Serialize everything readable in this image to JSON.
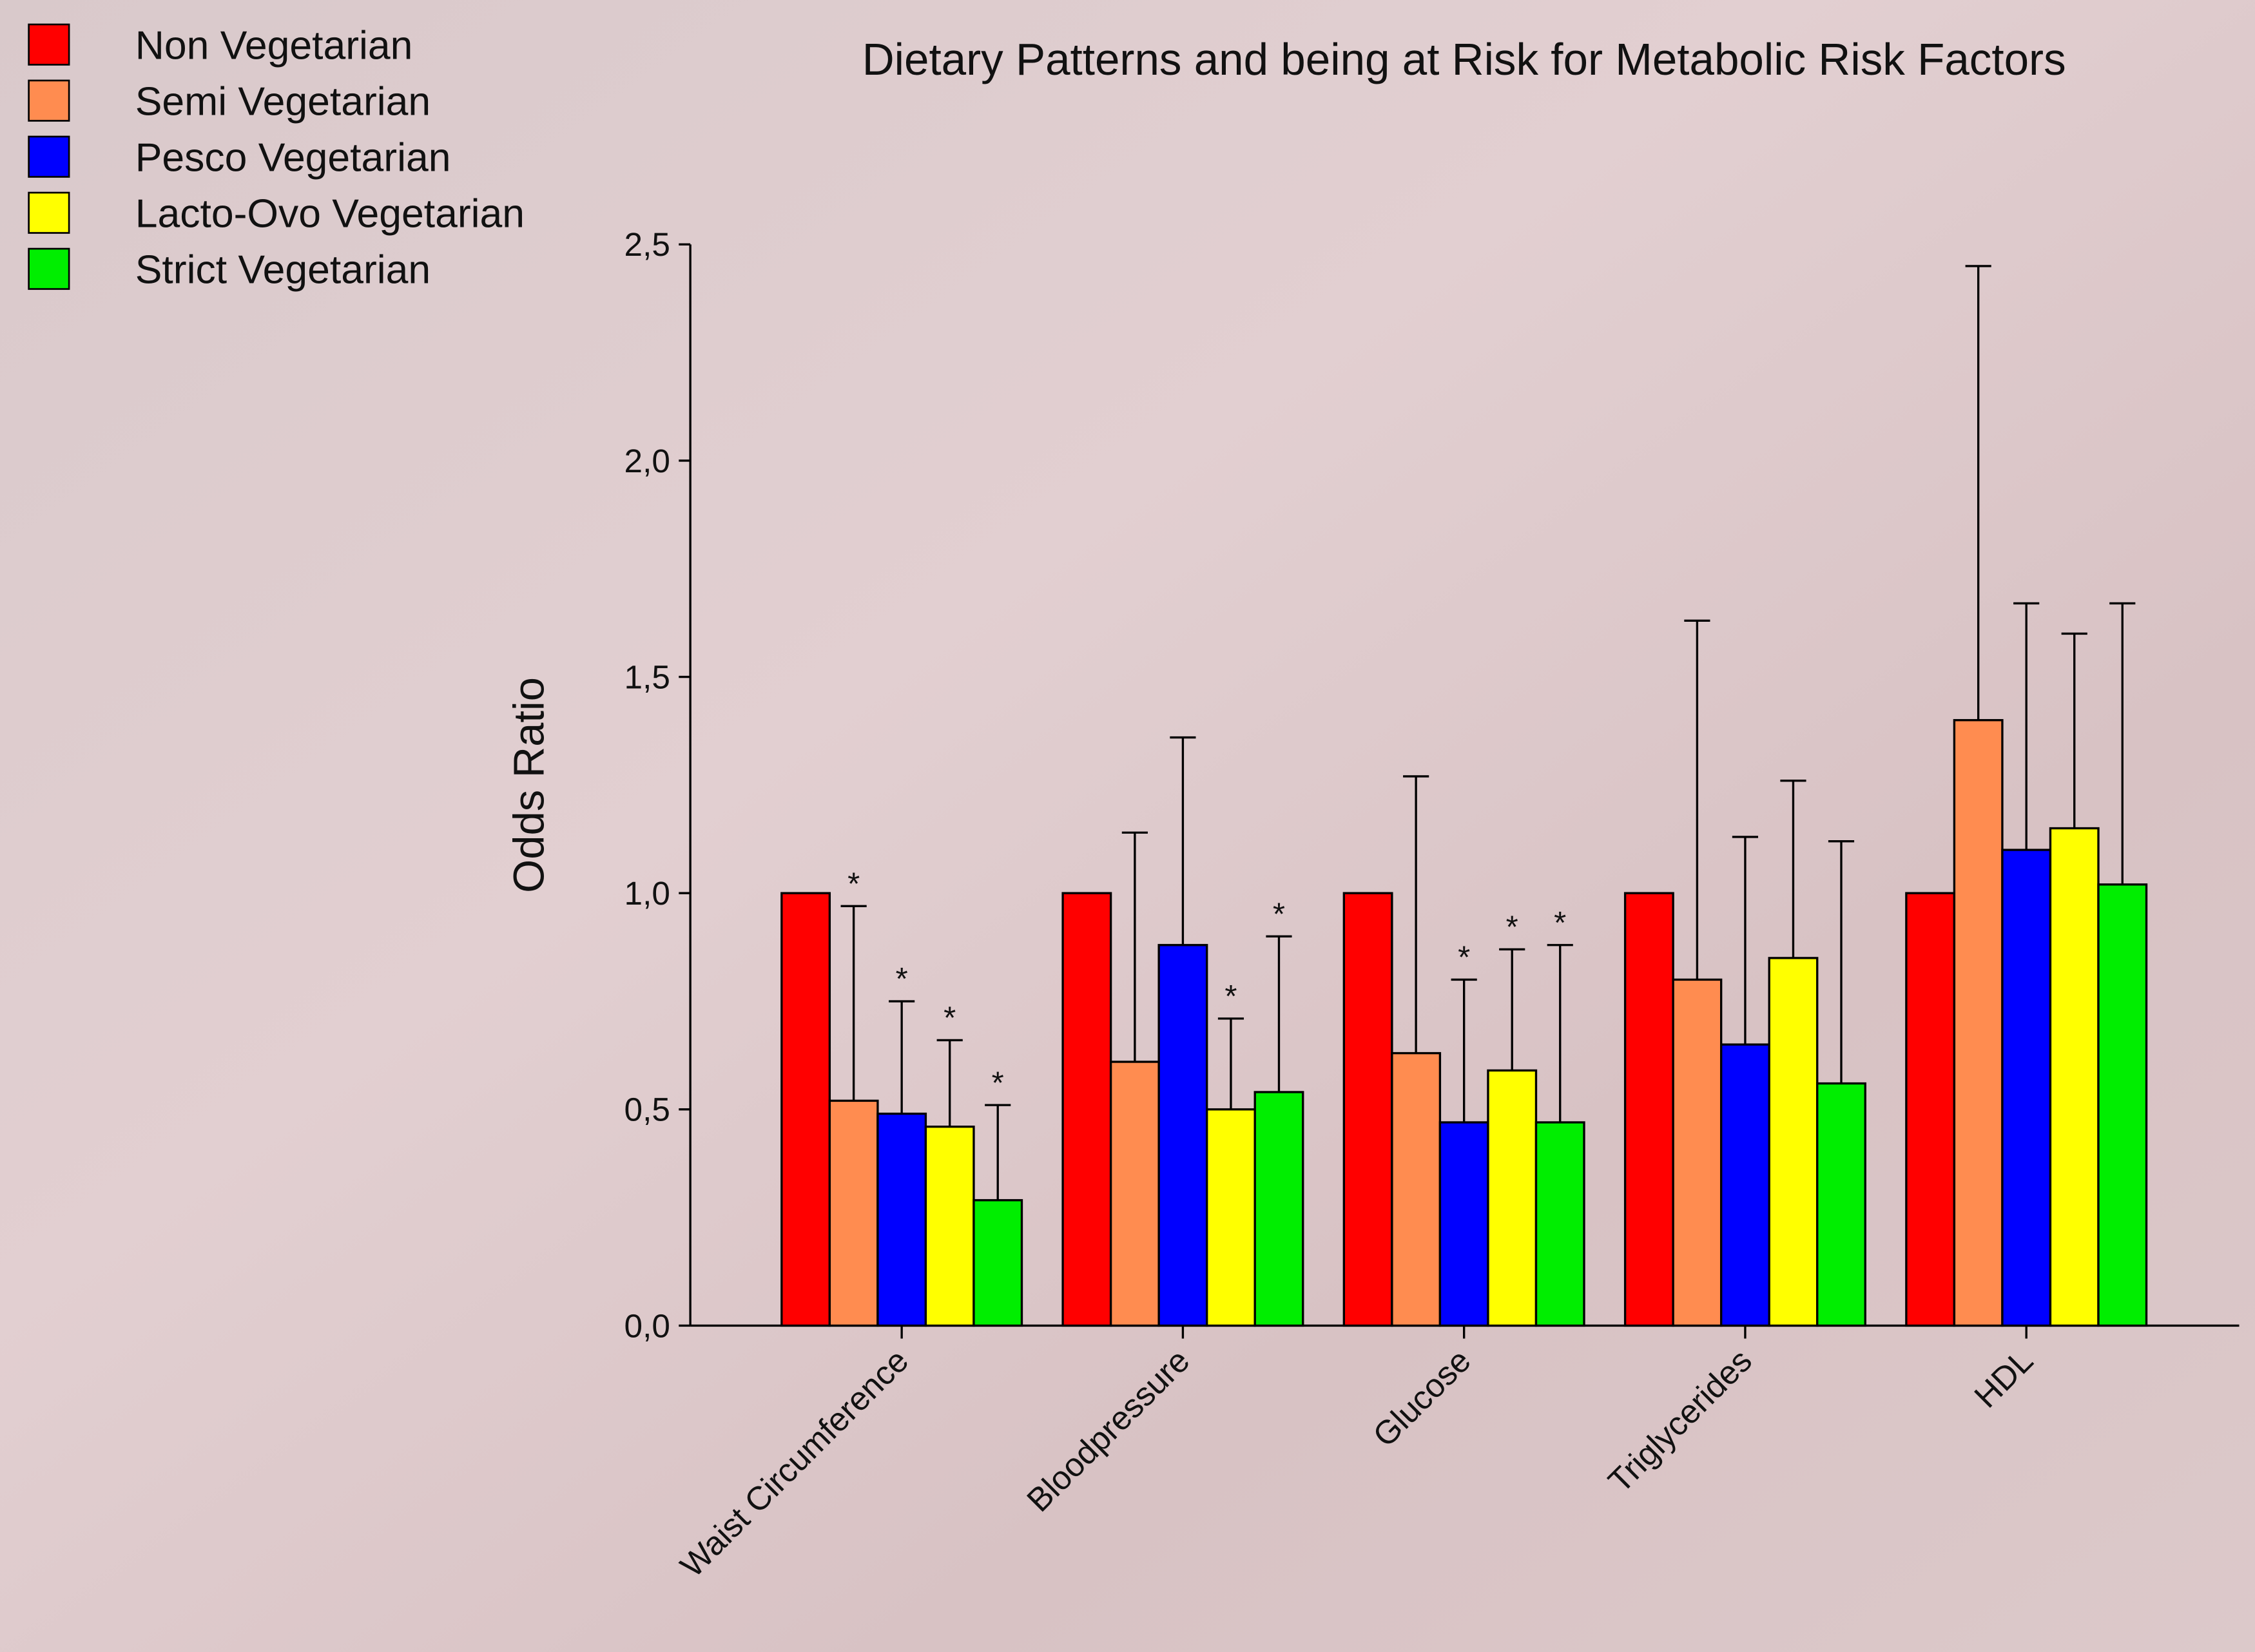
{
  "chart_data": {
    "type": "bar",
    "title": "Dietary Patterns and being at Risk for Metabolic Risk Factors",
    "y_label": "Odds Ratio",
    "categories": [
      "Waist Circumference",
      "Bloodpressure",
      "Glucose",
      "Triglycerides",
      "HDL"
    ],
    "series": [
      {
        "name": "Non Vegetarian",
        "color": "#ff0000",
        "values": [
          1.0,
          1.0,
          1.0,
          1.0,
          1.0
        ],
        "upper": [
          null,
          null,
          null,
          null,
          null
        ],
        "annotations": [
          null,
          null,
          null,
          null,
          null
        ]
      },
      {
        "name": "Semi Vegetarian",
        "color": "#ff8c50",
        "values": [
          0.52,
          0.61,
          0.63,
          0.8,
          1.4
        ],
        "upper": [
          0.97,
          1.14,
          1.27,
          1.63,
          2.45
        ],
        "annotations": [
          "*",
          null,
          null,
          null,
          null
        ]
      },
      {
        "name": "Pesco Vegetarian",
        "color": "#0000ff",
        "values": [
          0.49,
          0.88,
          0.47,
          0.65,
          1.1
        ],
        "upper": [
          0.75,
          1.36,
          0.8,
          1.13,
          1.67
        ],
        "annotations": [
          "*",
          null,
          "*",
          null,
          null
        ]
      },
      {
        "name": "Lacto-Ovo Vegetarian",
        "color": "#ffff00",
        "values": [
          0.46,
          0.5,
          0.59,
          0.85,
          1.15
        ],
        "upper": [
          0.66,
          0.71,
          0.87,
          1.26,
          1.6
        ],
        "annotations": [
          "*",
          "*",
          "*",
          null,
          null
        ]
      },
      {
        "name": "Strict Vegetarian",
        "color": "#00ee00",
        "values": [
          0.29,
          0.54,
          0.47,
          0.56,
          1.02
        ],
        "upper": [
          0.51,
          0.9,
          0.88,
          1.12,
          1.67
        ],
        "annotations": [
          "*",
          "*",
          "*",
          null,
          null
        ]
      }
    ],
    "ylim": [
      0,
      2.5
    ],
    "yticks": [
      {
        "value": 0,
        "label": "0,0"
      },
      {
        "value": 0.5,
        "label": "0,5"
      },
      {
        "value": 1,
        "label": "1,0"
      },
      {
        "value": 1.5,
        "label": "1,5"
      },
      {
        "value": 2,
        "label": "2,0"
      },
      {
        "value": 2.5,
        "label": "2,5"
      }
    ],
    "legend": "top-left"
  }
}
